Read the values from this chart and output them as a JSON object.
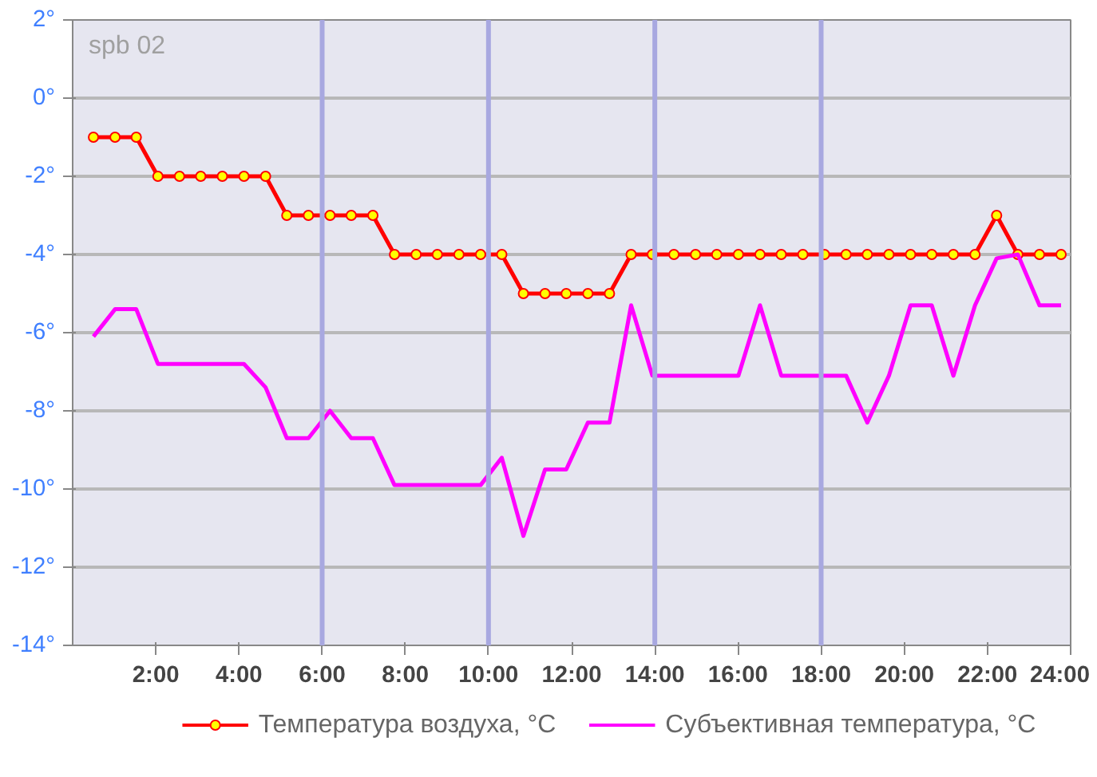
{
  "chart_data": {
    "type": "line",
    "annotations": [
      "spb 02"
    ],
    "x": [
      0.5,
      1.02,
      1.53,
      2.05,
      2.57,
      3.08,
      3.6,
      4.12,
      4.64,
      5.15,
      5.67,
      6.19,
      6.7,
      7.22,
      7.74,
      8.26,
      8.77,
      9.29,
      9.81,
      10.32,
      10.84,
      11.36,
      11.87,
      12.39,
      12.91,
      13.43,
      13.94,
      14.46,
      14.98,
      15.49,
      16.01,
      16.53,
      17.04,
      17.56,
      18.08,
      18.6,
      19.11,
      19.63,
      20.15,
      20.66,
      21.18,
      21.7,
      22.22,
      22.73,
      23.25,
      23.77
    ],
    "series": [
      {
        "name": "Температура воздуха, °C",
        "color": "#ff0000",
        "marker": "circle",
        "values": [
          -1,
          -1,
          -1,
          -2,
          -2,
          -2,
          -2,
          -2,
          -2,
          -3,
          -3,
          -3,
          -3,
          -3,
          -4,
          -4,
          -4,
          -4,
          -4,
          -4,
          -5,
          -5,
          -5,
          -5,
          -5,
          -4,
          -4,
          -4,
          -4,
          -4,
          -4,
          -4,
          -4,
          -4,
          -4,
          -4,
          -4,
          -4,
          -4,
          -4,
          -4,
          -4,
          -3,
          -4,
          -4,
          -4
        ]
      },
      {
        "name": "Субъективная температура, °C",
        "color": "#ff00ff",
        "marker": "none",
        "values": [
          -6.1,
          -5.4,
          -5.4,
          -6.8,
          -6.8,
          -6.8,
          -6.8,
          -6.8,
          -7.4,
          -8.7,
          -8.7,
          -8.0,
          -8.7,
          -8.7,
          -9.9,
          -9.9,
          -9.9,
          -9.9,
          -9.9,
          -9.2,
          -11.2,
          -9.5,
          -9.5,
          -8.3,
          -8.3,
          -5.3,
          -7.1,
          -7.1,
          -7.1,
          -7.1,
          -7.1,
          -5.3,
          -7.1,
          -7.1,
          -7.1,
          -7.1,
          -8.3,
          -7.1,
          -5.3,
          -5.3,
          -7.1,
          -5.3,
          -4.1,
          -4.0,
          -5.3,
          -5.3
        ]
      }
    ],
    "xlim": [
      0,
      24
    ],
    "xticks": [
      {
        "value": 2,
        "label": "2:00"
      },
      {
        "value": 4,
        "label": "4:00"
      },
      {
        "value": 6,
        "label": "6:00"
      },
      {
        "value": 8,
        "label": "8:00"
      },
      {
        "value": 10,
        "label": "10:00"
      },
      {
        "value": 12,
        "label": "12:00"
      },
      {
        "value": 14,
        "label": "14:00"
      },
      {
        "value": 16,
        "label": "16:00"
      },
      {
        "value": 18,
        "label": "18:00"
      },
      {
        "value": 20,
        "label": "20:00"
      },
      {
        "value": 22,
        "label": "22:00"
      },
      {
        "value": 24,
        "label": "24:00"
      }
    ],
    "ylim": [
      -14,
      2
    ],
    "yticks": [
      {
        "value": -14,
        "label": "-14°"
      },
      {
        "value": -12,
        "label": "-12°"
      },
      {
        "value": -10,
        "label": "-10°"
      },
      {
        "value": -8,
        "label": "-8°"
      },
      {
        "value": -6,
        "label": "-6°"
      },
      {
        "value": -4,
        "label": "-4°"
      },
      {
        "value": -2,
        "label": "-2°"
      },
      {
        "value": 0,
        "label": "0°"
      },
      {
        "value": 2,
        "label": "2°"
      }
    ],
    "ref_lines": [
      {
        "axis": "x",
        "value": 6,
        "color": "#a8a8e0"
      },
      {
        "axis": "x",
        "value": 10,
        "color": "#a8a8e0"
      },
      {
        "axis": "x",
        "value": 14,
        "color": "#a8a8e0"
      },
      {
        "axis": "x",
        "value": 18,
        "color": "#a8a8e0"
      }
    ],
    "grid": "y",
    "legend": "bottom",
    "line_style": "solid"
  }
}
